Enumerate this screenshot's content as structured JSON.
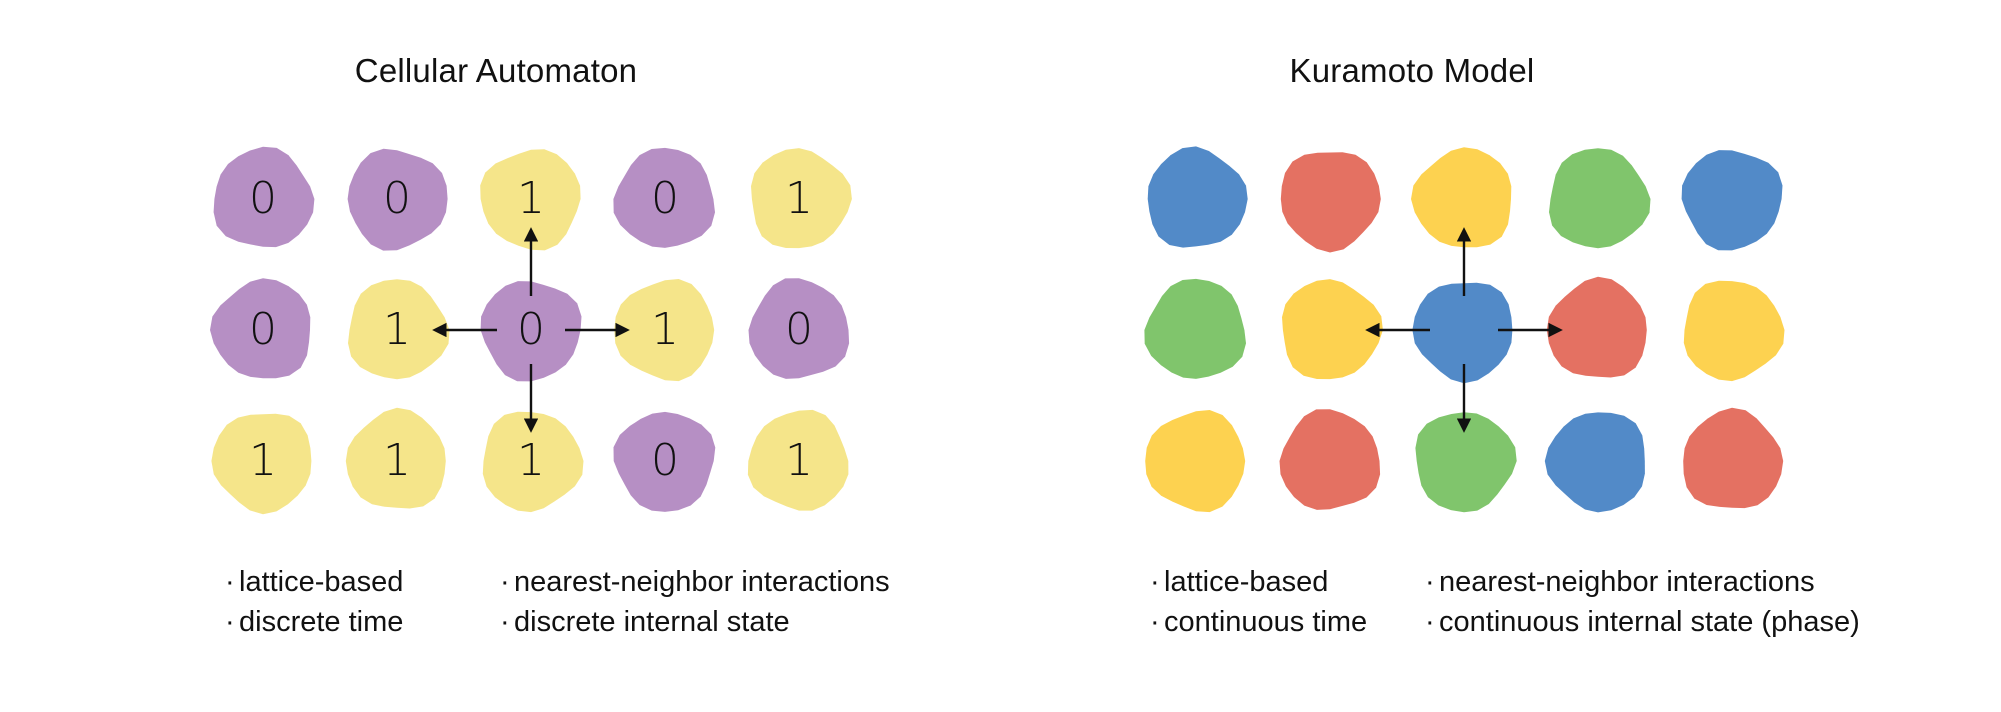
{
  "panels": [
    {
      "id": "cellular-automaton",
      "title": "Cellular Automaton",
      "grid": [
        [
          {
            "label": "0",
            "color": "#b68fc4"
          },
          {
            "label": "0",
            "color": "#b68fc4"
          },
          {
            "label": "1",
            "color": "#f5e58a"
          },
          {
            "label": "0",
            "color": "#b68fc4"
          },
          {
            "label": "1",
            "color": "#f5e58a"
          }
        ],
        [
          {
            "label": "0",
            "color": "#b68fc4"
          },
          {
            "label": "1",
            "color": "#f5e58a"
          },
          {
            "label": "0",
            "color": "#b68fc4"
          },
          {
            "label": "1",
            "color": "#f5e58a"
          },
          {
            "label": "0",
            "color": "#b68fc4"
          }
        ],
        [
          {
            "label": "1",
            "color": "#f5e58a"
          },
          {
            "label": "1",
            "color": "#f5e58a"
          },
          {
            "label": "1",
            "color": "#f5e58a"
          },
          {
            "label": "0",
            "color": "#b68fc4"
          },
          {
            "label": "1",
            "color": "#f5e58a"
          }
        ]
      ],
      "properties_left": [
        "lattice-based",
        "discrete time"
      ],
      "properties_right": [
        "nearest-neighbor interactions",
        "discrete internal state"
      ]
    },
    {
      "id": "kuramoto-model",
      "title": "Kuramoto Model",
      "grid": [
        [
          {
            "label": "",
            "color": "#528ac8"
          },
          {
            "label": "",
            "color": "#e47162"
          },
          {
            "label": "",
            "color": "#fdd250"
          },
          {
            "label": "",
            "color": "#80c56c"
          },
          {
            "label": "",
            "color": "#528ac8"
          }
        ],
        [
          {
            "label": "",
            "color": "#80c56c"
          },
          {
            "label": "",
            "color": "#fdd250"
          },
          {
            "label": "",
            "color": "#528ac8"
          },
          {
            "label": "",
            "color": "#e47162"
          },
          {
            "label": "",
            "color": "#fdd250"
          }
        ],
        [
          {
            "label": "",
            "color": "#fdd250"
          },
          {
            "label": "",
            "color": "#e47162"
          },
          {
            "label": "",
            "color": "#80c56c"
          },
          {
            "label": "",
            "color": "#528ac8"
          },
          {
            "label": "",
            "color": "#e47162"
          }
        ]
      ],
      "properties_left": [
        "lattice-based",
        "continuous time"
      ],
      "properties_right": [
        "nearest-neighbor interactions",
        "continuous internal state (phase)"
      ]
    }
  ],
  "bullet": "·",
  "colors": {
    "arrow": "#111111",
    "purple": "#b68fc4",
    "pale_yellow": "#f5e58a",
    "blue": "#528ac8",
    "red": "#e47162",
    "yellow": "#fdd250",
    "green": "#80c56c"
  }
}
